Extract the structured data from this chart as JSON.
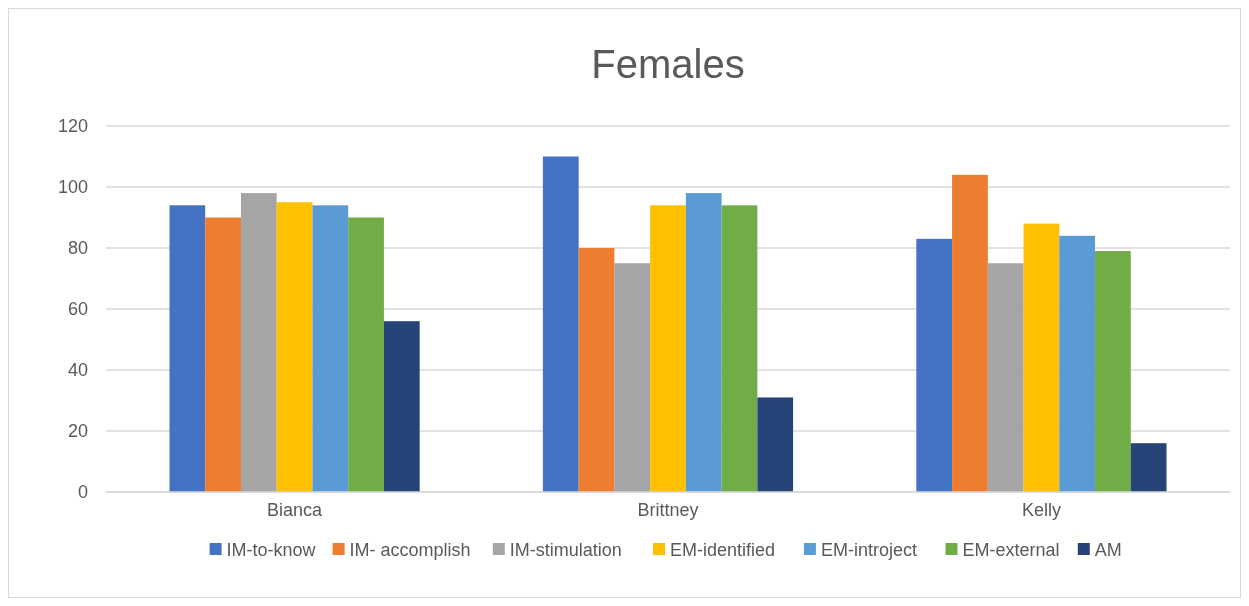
{
  "chart_data": {
    "type": "bar",
    "title": "Females",
    "categories": [
      "Bianca",
      "Brittney",
      "Kelly"
    ],
    "series": [
      {
        "name": "IM-to-know",
        "color": "#4472c4",
        "values": [
          94,
          110,
          83
        ]
      },
      {
        "name": "IM- accomplish",
        "color": "#ed7d31",
        "values": [
          90,
          80,
          104
        ]
      },
      {
        "name": "IM-stimulation",
        "color": "#a5a5a5",
        "values": [
          98,
          75,
          75
        ]
      },
      {
        "name": "EM-identified",
        "color": "#ffc000",
        "values": [
          95,
          94,
          88
        ]
      },
      {
        "name": "EM-introject",
        "color": "#5b9bd5",
        "values": [
          94,
          98,
          84
        ]
      },
      {
        "name": "EM-external",
        "color": "#70ad47",
        "values": [
          90,
          94,
          79
        ]
      },
      {
        "name": "AM",
        "color": "#264478",
        "values": [
          56,
          31,
          16
        ]
      }
    ],
    "ylim": [
      0,
      120
    ],
    "yticks": [
      0,
      20,
      40,
      60,
      80,
      100,
      120
    ],
    "grid": "y",
    "legend": "bottom"
  }
}
